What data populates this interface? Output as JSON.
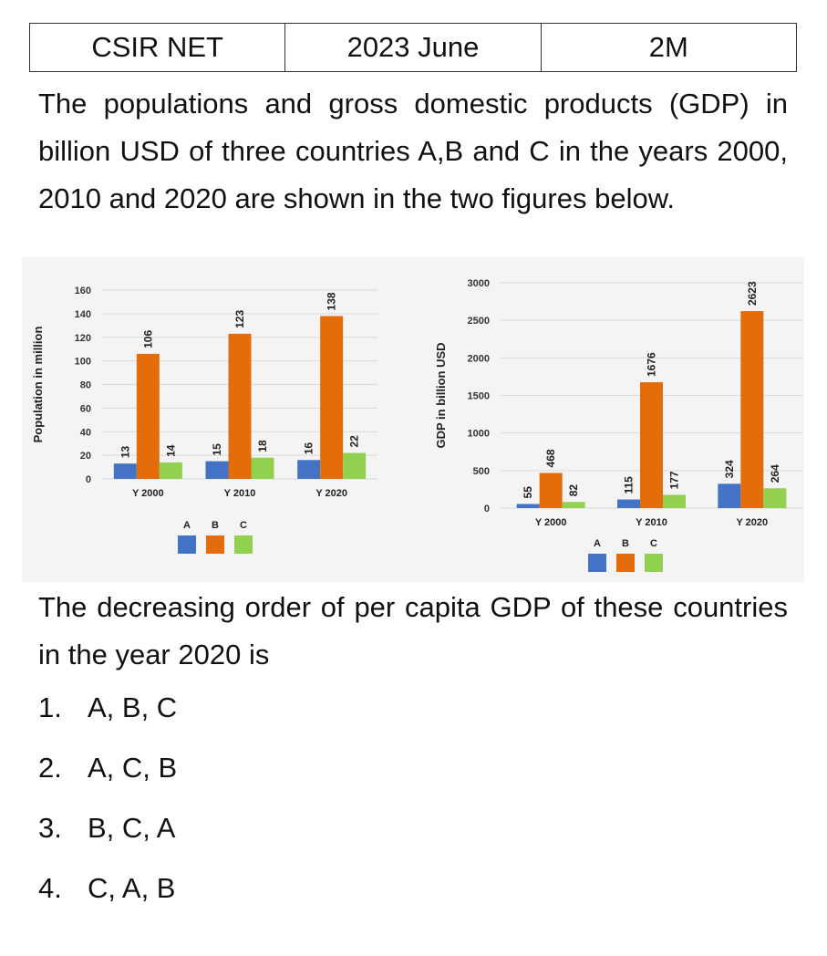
{
  "header": {
    "exam": "CSIR NET",
    "session": "2023 June",
    "marks": "2M"
  },
  "question_intro": "The populations and gross domestic products (GDP) in billion USD of three countries A,B and C in the years 2000, 2010 and 2020 are shown in the two figures below.",
  "question_prompt": "The decreasing order of per capita GDP of these countries in the year 2020 is",
  "options": [
    {
      "num": "1.",
      "text": "A, B, C"
    },
    {
      "num": "2.",
      "text": "A, C, B"
    },
    {
      "num": "3.",
      "text": "B, C, A"
    },
    {
      "num": "4.",
      "text": "C, A, B"
    }
  ],
  "colors": {
    "A": "#4472c4",
    "B": "#e46c0a",
    "C": "#92d050",
    "grid": "#d9d9d9"
  },
  "chart_data": [
    {
      "type": "bar",
      "ylabel": "Population in million",
      "categories": [
        "Y 2000",
        "Y 2010",
        "Y 2020"
      ],
      "series": [
        {
          "name": "A",
          "values": [
            13,
            15,
            16
          ]
        },
        {
          "name": "B",
          "values": [
            106,
            123,
            138
          ]
        },
        {
          "name": "C",
          "values": [
            14,
            18,
            22
          ]
        }
      ],
      "ylim": [
        0,
        160
      ],
      "yticks": [
        0,
        20,
        40,
        60,
        80,
        100,
        120,
        140,
        160
      ],
      "grid": true,
      "legend": "bottom"
    },
    {
      "type": "bar",
      "ylabel": "GDP in billion USD",
      "categories": [
        "Y 2000",
        "Y 2010",
        "Y 2020"
      ],
      "series": [
        {
          "name": "A",
          "values": [
            55,
            115,
            324
          ]
        },
        {
          "name": "B",
          "values": [
            468,
            1676,
            2623
          ]
        },
        {
          "name": "C",
          "values": [
            82,
            177,
            264
          ]
        }
      ],
      "ylim": [
        0,
        3000
      ],
      "yticks": [
        0,
        500,
        1000,
        1500,
        2000,
        2500,
        3000
      ],
      "grid": true,
      "legend": "bottom"
    }
  ]
}
